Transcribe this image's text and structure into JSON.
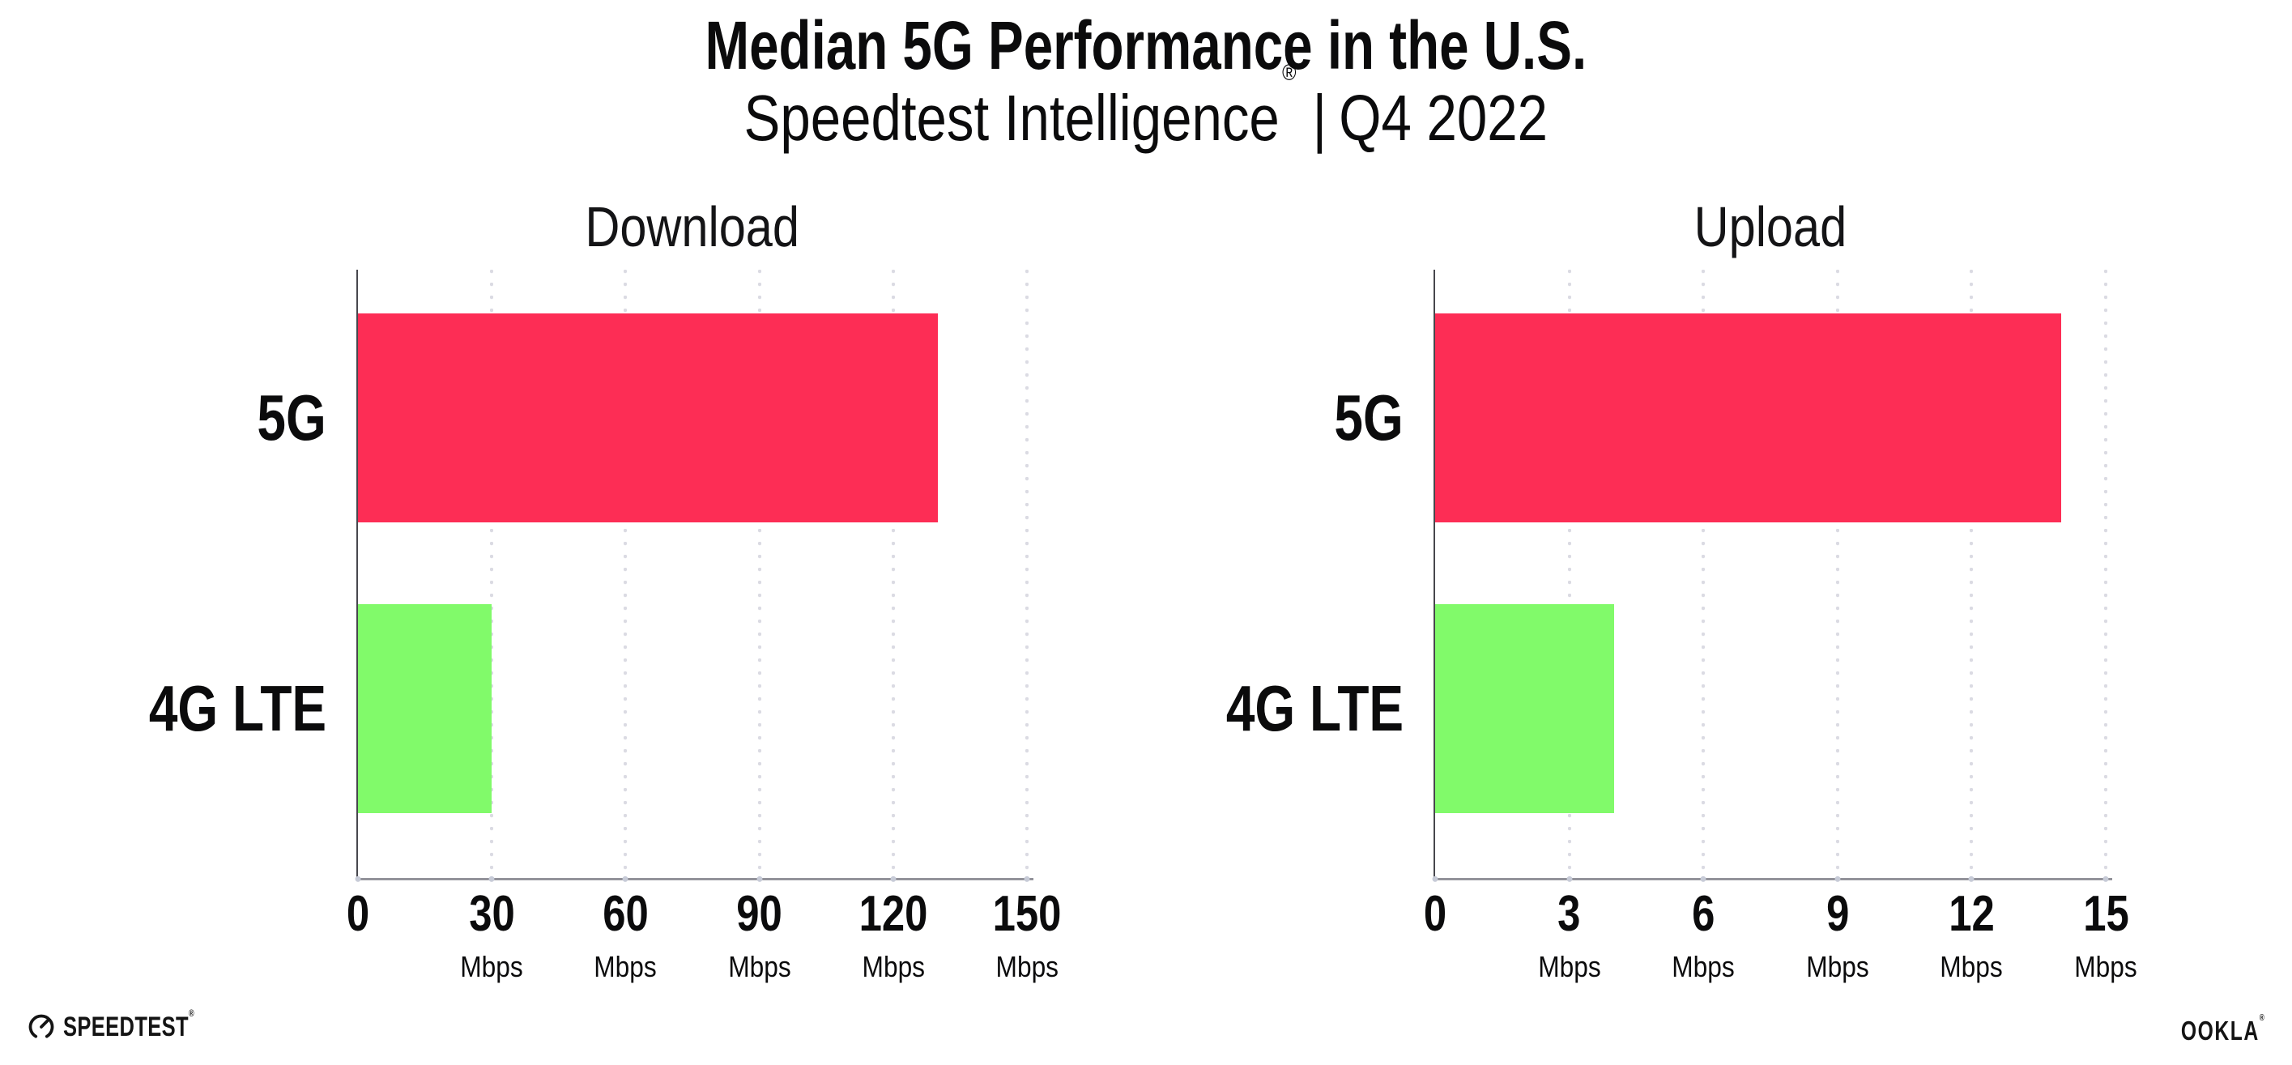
{
  "header": {
    "title": "Median 5G Performance in the U.S.",
    "subtitle_brand": "Speedtest Intelligence",
    "subtitle_mark": "®",
    "subtitle_separator": "|",
    "subtitle_period": "Q4 2022"
  },
  "chart_data": [
    {
      "type": "bar",
      "orientation": "horizontal",
      "title": "Download",
      "categories": [
        "5G",
        "4G LTE"
      ],
      "values": [
        130,
        30
      ],
      "unit": "Mbps",
      "xlim": [
        0,
        150
      ],
      "xticks": [
        0,
        30,
        60,
        90,
        120,
        150
      ],
      "bar_colors": [
        "#FD2D55",
        "#81FA6A"
      ],
      "grid": "dotted-vertical",
      "legend": "none"
    },
    {
      "type": "bar",
      "orientation": "horizontal",
      "title": "Upload",
      "categories": [
        "5G",
        "4G LTE"
      ],
      "values": [
        14,
        4
      ],
      "unit": "Mbps",
      "xlim": [
        0,
        15
      ],
      "xticks": [
        0,
        3,
        6,
        9,
        12,
        15
      ],
      "bar_colors": [
        "#FD2D55",
        "#81FA6A"
      ],
      "grid": "dotted-vertical",
      "legend": "none"
    }
  ],
  "colors": {
    "bar_5g": "#FD2D55",
    "bar_4g_lte": "#81FA6A",
    "gridline": "#DBDBE3",
    "axis_y": "#47474D",
    "axis_x": "#93939B",
    "tick_dot": "#C7CBD7",
    "text": "#0B0B0C",
    "background": "#FFFFFF"
  },
  "footer": {
    "speedtest_icon": "speedtest-gauge-icon",
    "speedtest_label": "SPEEDTEST",
    "speedtest_mark": "®",
    "ookla_label": "OOKLA",
    "ookla_mark": "®"
  }
}
